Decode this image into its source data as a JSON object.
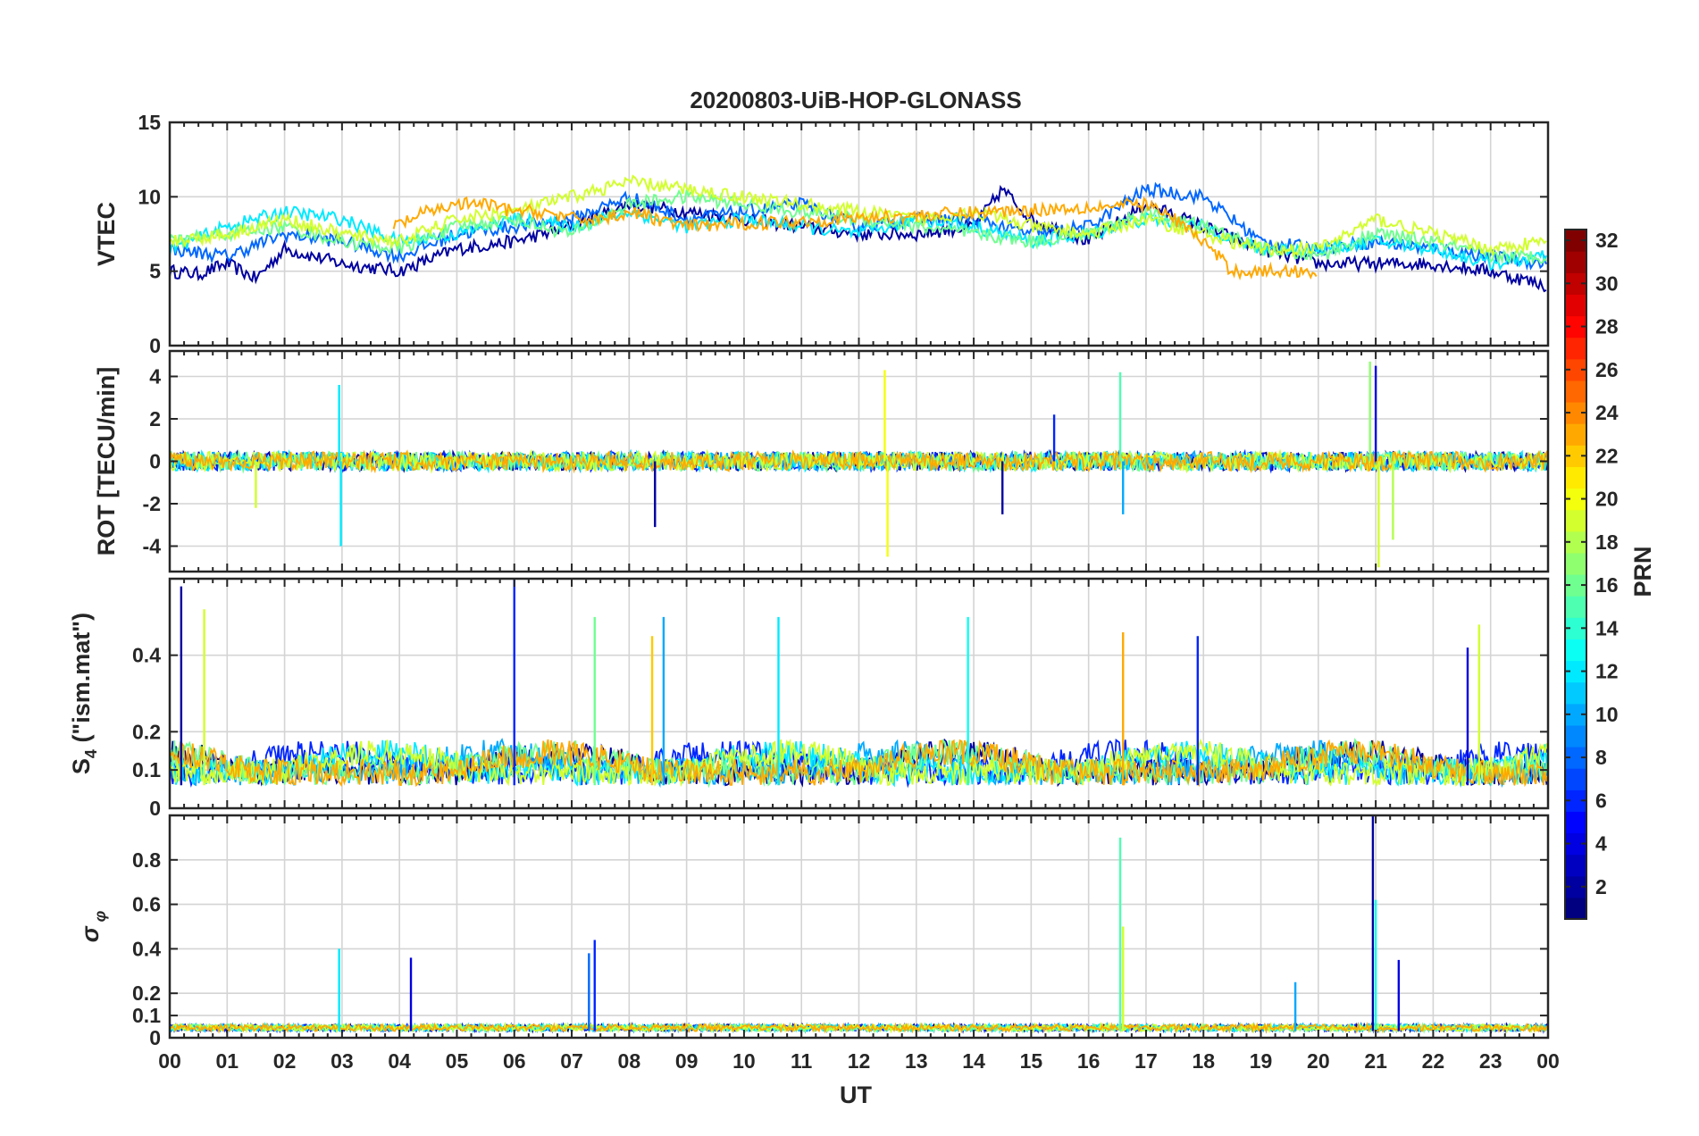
{
  "figure": {
    "title": "20200803-UiB-HOP-GLONASS",
    "xlabel": "UT",
    "x_tick_labels": [
      "00",
      "01",
      "02",
      "03",
      "04",
      "05",
      "06",
      "07",
      "08",
      "09",
      "10",
      "11",
      "12",
      "13",
      "14",
      "15",
      "16",
      "17",
      "18",
      "19",
      "20",
      "21",
      "22",
      "23",
      "00"
    ]
  },
  "colorbar": {
    "label": "PRN",
    "colormap": "jet",
    "range": [
      1,
      32
    ],
    "levels": 32,
    "tick_labels": [
      "2",
      "4",
      "6",
      "8",
      "10",
      "12",
      "14",
      "16",
      "18",
      "20",
      "22",
      "24",
      "26",
      "28",
      "30",
      "32"
    ],
    "tick_values": [
      2,
      4,
      6,
      8,
      10,
      12,
      14,
      16,
      18,
      20,
      22,
      24,
      26,
      28,
      30,
      32
    ]
  },
  "chart_data": [
    {
      "type": "line",
      "panel": "vtec",
      "ylabel": "VTEC",
      "ylim": [
        0,
        15
      ],
      "xlim_hours": [
        0,
        24
      ],
      "y_tick_labels": [
        "0",
        "5",
        "10",
        "15"
      ],
      "y_tick_values": [
        0,
        5,
        10,
        15
      ],
      "grid": true,
      "series": [
        {
          "prn": 2,
          "x": [
            0.0,
            0.5,
            1.0,
            1.5,
            2.0,
            3.0,
            4.0,
            5.0,
            6.0,
            7.0,
            8.0,
            9.0,
            10.0,
            11.0,
            12.0,
            13.0,
            14.0,
            14.5,
            15.0,
            16.0,
            17.0,
            18.0,
            19.0,
            20.0,
            21.0,
            22.0,
            23.0,
            24.0
          ],
          "y": [
            5.0,
            4.8,
            5.5,
            4.5,
            6.5,
            5.5,
            5.0,
            6.5,
            7.0,
            8.0,
            9.5,
            9.0,
            8.5,
            8.0,
            7.5,
            7.5,
            8.0,
            10.5,
            8.5,
            7.0,
            9.5,
            8.0,
            6.5,
            5.5,
            5.5,
            5.5,
            5.0,
            4.0
          ]
        },
        {
          "prn": 8,
          "x": [
            0.0,
            1.0,
            2.0,
            3.0,
            4.0,
            5.0,
            6.0,
            7.0,
            8.0,
            9.0,
            10.0,
            11.0,
            12.0,
            13.0,
            14.0,
            15.0,
            16.0,
            17.0,
            18.0,
            19.0,
            20.0,
            21.0,
            22.0,
            23.0,
            24.0
          ],
          "y": [
            6.5,
            6.0,
            7.5,
            7.0,
            6.0,
            7.5,
            8.0,
            8.5,
            10.0,
            8.5,
            9.0,
            9.5,
            8.0,
            8.5,
            8.5,
            7.5,
            8.0,
            10.5,
            10.0,
            7.0,
            6.5,
            7.0,
            6.5,
            6.0,
            5.5
          ]
        },
        {
          "prn": 12,
          "x": [
            0.0,
            1.0,
            2.0,
            3.0,
            4.0,
            5.0,
            6.0,
            7.0,
            8.0,
            9.0,
            10.0,
            11.0,
            12.0,
            13.0,
            14.0,
            15.0,
            16.0,
            17.0,
            18.0,
            19.0,
            20.0,
            21.0,
            22.0,
            23.0,
            24.0
          ],
          "y": [
            6.5,
            8.0,
            9.0,
            8.5,
            7.0,
            7.5,
            8.5,
            8.0,
            9.0,
            8.0,
            8.5,
            8.0,
            7.5,
            8.5,
            8.0,
            7.0,
            7.5,
            8.5,
            8.0,
            6.5,
            6.5,
            7.0,
            6.5,
            5.5,
            6.0
          ]
        },
        {
          "prn": 16,
          "x": [
            0.0,
            1.0,
            2.0,
            3.0,
            4.0,
            5.0,
            6.0,
            7.0,
            8.0,
            9.0,
            10.0,
            11.0,
            12.0,
            13.0,
            14.0,
            15.0,
            16.0,
            17.0,
            18.0,
            19.0,
            20.0,
            21.0,
            22.0,
            23.0,
            24.0
          ],
          "y": [
            7.0,
            7.5,
            8.0,
            7.0,
            6.5,
            8.0,
            8.5,
            7.5,
            9.5,
            10.0,
            9.5,
            9.0,
            8.5,
            8.0,
            7.5,
            7.0,
            7.5,
            9.0,
            8.0,
            6.5,
            6.0,
            7.5,
            7.0,
            6.0,
            6.0
          ]
        },
        {
          "prn": 19,
          "x": [
            0.0,
            1.0,
            2.0,
            3.0,
            4.0,
            5.0,
            6.0,
            7.0,
            8.0,
            9.0,
            10.0,
            11.0,
            12.0,
            13.0,
            14.0,
            15.0,
            16.0,
            17.0,
            18.0,
            19.0,
            20.0,
            21.0,
            22.0,
            23.0,
            24.0
          ],
          "y": [
            7.0,
            7.5,
            8.5,
            7.5,
            7.0,
            8.5,
            9.0,
            10.0,
            11.0,
            10.5,
            10.0,
            9.5,
            9.0,
            8.5,
            9.0,
            8.0,
            7.5,
            8.5,
            7.5,
            6.5,
            6.5,
            8.5,
            7.5,
            6.5,
            7.0
          ]
        },
        {
          "prn": 23,
          "x": [
            3.9,
            4.5,
            5.0,
            5.5,
            6.0,
            6.5,
            7.0,
            7.5,
            8.0,
            8.5,
            9.0,
            17.0,
            17.5,
            18.0,
            18.5,
            19.0,
            19.5,
            20.0
          ],
          "y": [
            8.0,
            9.0,
            9.5,
            9.5,
            9.0,
            9.0,
            8.5,
            8.5,
            9.0,
            8.5,
            8.0,
            9.5,
            8.5,
            7.0,
            5.0,
            5.0,
            5.0,
            5.0
          ]
        }
      ]
    },
    {
      "type": "line",
      "panel": "rot",
      "ylabel": "ROT [TECU/min]",
      "ylim": [
        -5.2,
        5.2
      ],
      "xlim_hours": [
        0,
        24
      ],
      "y_tick_labels": [
        "-4",
        "-2",
        "0",
        "2",
        "4"
      ],
      "y_tick_values": [
        -4,
        -2,
        0,
        2,
        4
      ],
      "grid": true,
      "baseline": 0,
      "spikes": [
        {
          "prn": 12,
          "x": 2.95,
          "y": 3.6
        },
        {
          "prn": 12,
          "x": 2.98,
          "y": -4.0
        },
        {
          "prn": 19,
          "x": 1.5,
          "y": -2.2
        },
        {
          "prn": 2,
          "x": 8.45,
          "y": -3.1
        },
        {
          "prn": 20,
          "x": 12.45,
          "y": 4.3
        },
        {
          "prn": 20,
          "x": 12.5,
          "y": -4.5
        },
        {
          "prn": 2,
          "x": 14.5,
          "y": -2.5
        },
        {
          "prn": 6,
          "x": 15.4,
          "y": 2.2
        },
        {
          "prn": 15,
          "x": 16.55,
          "y": 4.2
        },
        {
          "prn": 10,
          "x": 16.6,
          "y": -2.5
        },
        {
          "prn": 17,
          "x": 20.9,
          "y": 4.7
        },
        {
          "prn": 19,
          "x": 21.05,
          "y": -5.0
        },
        {
          "prn": 4,
          "x": 21.0,
          "y": 4.5
        },
        {
          "prn": 18,
          "x": 21.3,
          "y": -3.7
        }
      ]
    },
    {
      "type": "line",
      "panel": "s4",
      "ylabel": "S4 (\"ism.mat\")",
      "ylim": [
        0,
        0.6
      ],
      "xlim_hours": [
        0,
        24
      ],
      "y_tick_labels": [
        "0",
        "0.1",
        "0.2",
        "0.4"
      ],
      "y_tick_values": [
        0,
        0.1,
        0.2,
        0.4
      ],
      "grid": true,
      "baseline": 0.06,
      "peaks": [
        {
          "prn": 2,
          "x": 0.2,
          "y": 0.58
        },
        {
          "prn": 19,
          "x": 0.6,
          "y": 0.52
        },
        {
          "prn": 6,
          "x": 6.0,
          "y": 0.6
        },
        {
          "prn": 22,
          "x": 8.4,
          "y": 0.45
        },
        {
          "prn": 10,
          "x": 8.6,
          "y": 0.5
        },
        {
          "prn": 16,
          "x": 7.4,
          "y": 0.5
        },
        {
          "prn": 12,
          "x": 10.6,
          "y": 0.5
        },
        {
          "prn": 13,
          "x": 13.9,
          "y": 0.5
        },
        {
          "prn": 23,
          "x": 16.6,
          "y": 0.46
        },
        {
          "prn": 6,
          "x": 17.9,
          "y": 0.45
        },
        {
          "prn": 19,
          "x": 22.8,
          "y": 0.48
        },
        {
          "prn": 4,
          "x": 22.6,
          "y": 0.42
        }
      ]
    },
    {
      "type": "line",
      "panel": "sigma_phi",
      "ylabel": "σ_φ",
      "ylim": [
        0,
        1.0
      ],
      "xlim_hours": [
        0,
        24
      ],
      "y_tick_labels": [
        "0",
        "0.1",
        "0.2",
        "0.4",
        "0.6",
        "0.8"
      ],
      "y_tick_values": [
        0,
        0.1,
        0.2,
        0.4,
        0.6,
        0.8
      ],
      "grid": true,
      "baseline": 0.03,
      "peaks": [
        {
          "prn": 12,
          "x": 2.95,
          "y": 0.4
        },
        {
          "prn": 4,
          "x": 4.2,
          "y": 0.36
        },
        {
          "prn": 6,
          "x": 7.4,
          "y": 0.44
        },
        {
          "prn": 8,
          "x": 7.3,
          "y": 0.38
        },
        {
          "prn": 15,
          "x": 16.55,
          "y": 0.9
        },
        {
          "prn": 19,
          "x": 16.6,
          "y": 0.5
        },
        {
          "prn": 2,
          "x": 20.95,
          "y": 1.0
        },
        {
          "prn": 13,
          "x": 21.0,
          "y": 0.62
        },
        {
          "prn": 4,
          "x": 21.4,
          "y": 0.35
        },
        {
          "prn": 10,
          "x": 19.6,
          "y": 0.25
        }
      ]
    }
  ]
}
